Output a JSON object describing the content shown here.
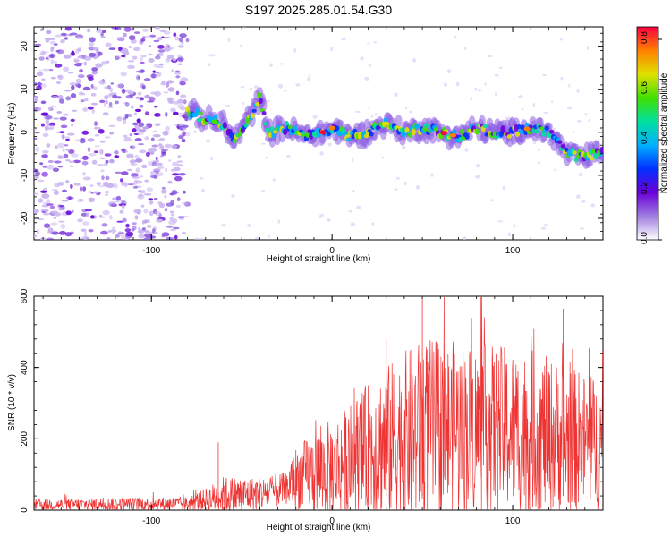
{
  "title": "S197.2025.285.01.54.G30",
  "chart_data": [
    {
      "type": "heatmap",
      "name": "spectrogram",
      "xlabel": "Height of straight line (km)",
      "ylabel": "Frequency (Hz)",
      "xlim": [
        -165,
        150
      ],
      "ylim": [
        -25,
        24.5
      ],
      "x_ticks": [
        -100,
        0,
        100
      ],
      "x_ticks_minor_step": 10,
      "y_ticks": [
        -20,
        -10,
        0,
        10,
        20
      ],
      "y_tick_labels": [
        "-20",
        "-10",
        "0",
        "10",
        "20"
      ],
      "colorbar": {
        "label": "Normalized spectral amplitude",
        "range": [
          0.0,
          0.85
        ],
        "ticks": [
          0.0,
          0.2,
          0.4,
          0.6,
          0.8
        ],
        "tick_labels": [
          "0.0",
          "0.2",
          "0.4",
          "0.6",
          "0.8"
        ],
        "colors": [
          "#ffffff",
          "#9e7de0",
          "#6a00d8",
          "#0030ff",
          "#00b0ff",
          "#00e0a0",
          "#40e000",
          "#e0e000",
          "#ff8000",
          "#ff0040"
        ]
      },
      "noise_region_x": [
        -165,
        -80
      ],
      "track": [
        {
          "x": -80,
          "y": 5
        },
        {
          "x": -70,
          "y": 3
        },
        {
          "x": -60,
          "y": 2
        },
        {
          "x": -55,
          "y": -2
        },
        {
          "x": -45,
          "y": 4
        },
        {
          "x": -40,
          "y": 8
        },
        {
          "x": -35,
          "y": 0
        },
        {
          "x": -25,
          "y": 1
        },
        {
          "x": -15,
          "y": -1
        },
        {
          "x": -5,
          "y": 0
        },
        {
          "x": 0,
          "y": 1
        },
        {
          "x": 10,
          "y": -1
        },
        {
          "x": 20,
          "y": 0
        },
        {
          "x": 30,
          "y": 2
        },
        {
          "x": 40,
          "y": 0
        },
        {
          "x": 50,
          "y": 1
        },
        {
          "x": 60,
          "y": 0
        },
        {
          "x": 70,
          "y": -1
        },
        {
          "x": 80,
          "y": 1
        },
        {
          "x": 90,
          "y": 0
        },
        {
          "x": 100,
          "y": 0
        },
        {
          "x": 110,
          "y": 1
        },
        {
          "x": 120,
          "y": 0
        },
        {
          "x": 130,
          "y": -5
        },
        {
          "x": 140,
          "y": -6
        },
        {
          "x": 150,
          "y": -4
        }
      ]
    },
    {
      "type": "line",
      "name": "snr",
      "xlabel": "Height of straight line (km)",
      "ylabel": "SNR (10 * v/v)",
      "xlim": [
        -165,
        150
      ],
      "ylim": [
        0,
        600
      ],
      "x_ticks": [
        -100,
        0,
        100
      ],
      "x_ticks_minor_step": 10,
      "y_ticks": [
        0,
        200,
        400,
        600
      ],
      "y_tick_labels": [
        "0",
        "200",
        "400",
        "600"
      ],
      "line_color": "#ee3333",
      "envelope": [
        {
          "x": -165,
          "base": 15,
          "amp": 20
        },
        {
          "x": -80,
          "base": 18,
          "amp": 25
        },
        {
          "x": -70,
          "base": 30,
          "amp": 40
        },
        {
          "x": -60,
          "base": 40,
          "amp": 70
        },
        {
          "x": -40,
          "base": 45,
          "amp": 60
        },
        {
          "x": -25,
          "base": 60,
          "amp": 60
        },
        {
          "x": -20,
          "base": 90,
          "amp": 110
        },
        {
          "x": -5,
          "base": 110,
          "amp": 160
        },
        {
          "x": 10,
          "base": 140,
          "amp": 200
        },
        {
          "x": 25,
          "base": 180,
          "amp": 260
        },
        {
          "x": 50,
          "base": 220,
          "amp": 330
        },
        {
          "x": 80,
          "base": 230,
          "amp": 300
        },
        {
          "x": 110,
          "base": 220,
          "amp": 290
        },
        {
          "x": 150,
          "base": 180,
          "amp": 230
        }
      ],
      "peak_markers": [
        {
          "x": 50,
          "y": 600
        },
        {
          "x": 128,
          "y": 565
        },
        {
          "x": 30,
          "y": 480
        },
        {
          "x": -63,
          "y": 190
        }
      ]
    }
  ]
}
